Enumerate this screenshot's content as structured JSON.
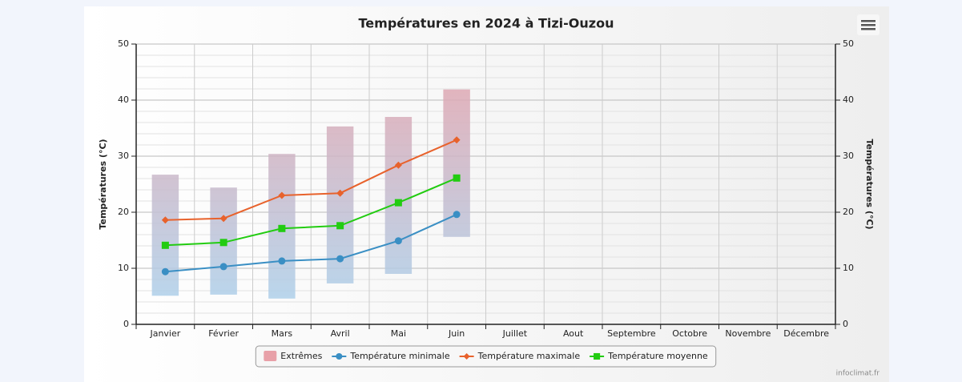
{
  "chart_data": {
    "type": "line",
    "title": "Températures en 2024 à Tizi-Ouzou",
    "ylabel": "Températures (°C)",
    "y2label": "Températures (°C)",
    "credit": "infoclimat.fr",
    "categories": [
      "Janvier",
      "Février",
      "Mars",
      "Avril",
      "Mai",
      "Juin",
      "Juillet",
      "Aout",
      "Septembre",
      "Octobre",
      "Novembre",
      "Décembre"
    ],
    "ylim": [
      0,
      50
    ],
    "yticks": [
      0,
      10,
      20,
      30,
      40,
      50
    ],
    "yminorticks": [
      2,
      4,
      6,
      8,
      12,
      14,
      16,
      18,
      22,
      24,
      26,
      28,
      32,
      34,
      36,
      38,
      42,
      44,
      46,
      48
    ],
    "y2lim": [
      0,
      50
    ],
    "y2ticks": [
      0,
      10,
      20,
      30,
      40,
      50
    ],
    "grid": true,
    "legend": "bottom",
    "ranges": [
      {
        "name": "Extrêmes",
        "color_top": "#e8a0a8",
        "color_bottom": "#a8d4f0",
        "low": [
          5.1,
          5.3,
          4.6,
          7.3,
          9.0,
          15.6,
          null,
          null,
          null,
          null,
          null,
          null
        ],
        "high": [
          26.7,
          24.4,
          30.4,
          35.3,
          37.0,
          41.9,
          null,
          null,
          null,
          null,
          null,
          null
        ]
      }
    ],
    "series": [
      {
        "name": "Température minimale",
        "color": "#3a8fc4",
        "marker": "circle",
        "values": [
          9.4,
          10.3,
          11.3,
          11.7,
          14.9,
          19.6,
          null,
          null,
          null,
          null,
          null,
          null
        ]
      },
      {
        "name": "Température maximale",
        "color": "#e8622c",
        "marker": "diamond",
        "values": [
          18.6,
          18.9,
          23.0,
          23.4,
          28.4,
          32.9,
          null,
          null,
          null,
          null,
          null,
          null
        ]
      },
      {
        "name": "Température moyenne",
        "color": "#22cc11",
        "marker": "square",
        "values": [
          14.1,
          14.6,
          17.1,
          17.6,
          21.7,
          26.1,
          null,
          null,
          null,
          null,
          null,
          null
        ]
      }
    ]
  }
}
